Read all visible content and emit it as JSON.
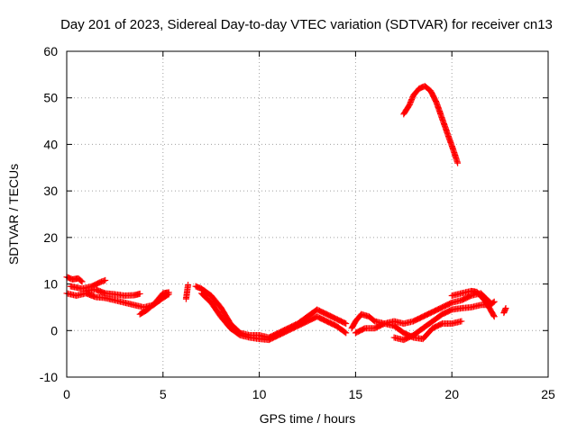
{
  "chart_data": {
    "type": "scatter",
    "title": "Day 201 of 2023, Sidereal Day-to-day VTEC variation (SDTVAR) for receiver cn13",
    "xlabel": "GPS time / hours",
    "ylabel": "SDTVAR / TECUs",
    "xlim": [
      0,
      25
    ],
    "ylim": [
      -10,
      60
    ],
    "xticks": [
      0,
      5,
      10,
      15,
      20,
      25
    ],
    "yticks": [
      -10,
      0,
      10,
      20,
      30,
      40,
      50,
      60
    ],
    "grid": true,
    "marker": "+",
    "series": [
      {
        "name": "SDTVAR",
        "color": "#ff0000",
        "segments": [
          [
            [
              0.0,
              11.5
            ],
            [
              0.3,
              11.0
            ],
            [
              0.6,
              11.2
            ],
            [
              0.8,
              10.5
            ]
          ],
          [
            [
              0.0,
              8.0
            ],
            [
              0.5,
              7.5
            ],
            [
              1.0,
              8.0
            ],
            [
              1.5,
              7.2
            ],
            [
              2.0,
              7.0
            ],
            [
              2.5,
              6.5
            ],
            [
              3.0,
              6.0
            ],
            [
              3.5,
              5.5
            ],
            [
              4.0,
              5.0
            ],
            [
              4.5,
              5.5
            ],
            [
              5.0,
              7.0
            ],
            [
              5.3,
              7.8
            ]
          ],
          [
            [
              0.2,
              9.5
            ],
            [
              0.8,
              9.0
            ],
            [
              1.3,
              9.5
            ],
            [
              1.8,
              10.5
            ],
            [
              2.0,
              10.8
            ]
          ],
          [
            [
              1.0,
              8.5
            ],
            [
              1.5,
              8.8
            ],
            [
              2.0,
              8.0
            ],
            [
              2.5,
              7.8
            ],
            [
              3.0,
              7.5
            ],
            [
              3.5,
              7.6
            ],
            [
              3.8,
              7.9
            ]
          ],
          [
            [
              3.8,
              3.5
            ],
            [
              4.2,
              4.5
            ],
            [
              4.6,
              6.0
            ],
            [
              5.0,
              8.0
            ],
            [
              5.3,
              8.2
            ]
          ],
          [
            [
              6.2,
              6.8
            ],
            [
              6.3,
              9.8
            ]
          ],
          [
            [
              6.7,
              9.5
            ],
            [
              7.0,
              9.0
            ],
            [
              7.5,
              7.5
            ],
            [
              8.0,
              5.0
            ],
            [
              8.5,
              1.5
            ],
            [
              9.0,
              -0.5
            ],
            [
              9.5,
              -1.0
            ],
            [
              10.0,
              -1.0
            ],
            [
              10.5,
              -1.5
            ],
            [
              11.0,
              -0.5
            ],
            [
              11.5,
              0.5
            ],
            [
              12.0,
              1.5
            ],
            [
              12.5,
              3.0
            ],
            [
              13.0,
              4.5
            ],
            [
              13.5,
              3.5
            ],
            [
              14.0,
              2.5
            ],
            [
              14.5,
              1.5
            ]
          ],
          [
            [
              7.0,
              8.0
            ],
            [
              7.5,
              6.0
            ],
            [
              8.0,
              3.0
            ],
            [
              8.5,
              0.5
            ],
            [
              9.0,
              -1.0
            ],
            [
              9.5,
              -1.5
            ],
            [
              10.0,
              -1.8
            ],
            [
              10.5,
              -2.0
            ],
            [
              11.0,
              -1.0
            ],
            [
              11.5,
              0.0
            ],
            [
              12.0,
              1.0
            ],
            [
              12.5,
              2.0
            ],
            [
              13.0,
              3.0
            ],
            [
              13.5,
              2.0
            ],
            [
              14.0,
              1.0
            ],
            [
              14.5,
              -0.5
            ]
          ],
          [
            [
              14.8,
              0.5
            ],
            [
              15.0,
              2.0
            ],
            [
              15.3,
              3.5
            ],
            [
              15.7,
              3.0
            ],
            [
              16.0,
              2.0
            ],
            [
              16.5,
              1.5
            ],
            [
              17.0,
              1.0
            ],
            [
              17.5,
              -0.5
            ],
            [
              18.0,
              -1.5
            ],
            [
              18.5,
              -1.8
            ],
            [
              19.0,
              0.5
            ],
            [
              19.5,
              1.5
            ],
            [
              20.0,
              1.5
            ],
            [
              20.5,
              2.0
            ]
          ],
          [
            [
              15.0,
              -0.5
            ],
            [
              15.5,
              0.5
            ],
            [
              16.0,
              0.5
            ],
            [
              16.5,
              1.5
            ],
            [
              17.0,
              2.0
            ],
            [
              17.5,
              1.5
            ],
            [
              18.0,
              2.0
            ],
            [
              18.5,
              3.0
            ],
            [
              19.0,
              4.0
            ],
            [
              19.5,
              5.0
            ],
            [
              20.0,
              6.0
            ],
            [
              20.5,
              6.5
            ],
            [
              21.0,
              7.5
            ],
            [
              21.5,
              8.0
            ],
            [
              22.0,
              6.0
            ]
          ],
          [
            [
              17.0,
              -1.5
            ],
            [
              17.5,
              -2.0
            ],
            [
              18.0,
              -1.0
            ],
            [
              18.5,
              0.5
            ],
            [
              19.0,
              2.0
            ],
            [
              19.5,
              3.5
            ],
            [
              20.0,
              4.5
            ],
            [
              20.5,
              4.8
            ],
            [
              21.0,
              5.0
            ],
            [
              21.5,
              5.5
            ],
            [
              22.0,
              5.5
            ],
            [
              22.2,
              6.2
            ]
          ],
          [
            [
              20.0,
              7.5
            ],
            [
              20.5,
              8.0
            ],
            [
              21.0,
              8.5
            ],
            [
              21.3,
              8.3
            ],
            [
              21.7,
              6.5
            ],
            [
              22.0,
              4.5
            ],
            [
              22.2,
              3.0
            ]
          ],
          [
            [
              22.7,
              3.8
            ],
            [
              22.8,
              4.8
            ]
          ],
          [
            [
              17.5,
              46.5
            ],
            [
              17.8,
              48.5
            ],
            [
              18.0,
              50.5
            ],
            [
              18.3,
              52.0
            ],
            [
              18.6,
              52.5
            ],
            [
              18.9,
              51.5
            ],
            [
              19.2,
              49.0
            ],
            [
              19.5,
              45.5
            ],
            [
              19.8,
              42.0
            ],
            [
              20.1,
              38.5
            ],
            [
              20.3,
              36.0
            ]
          ]
        ]
      }
    ]
  }
}
